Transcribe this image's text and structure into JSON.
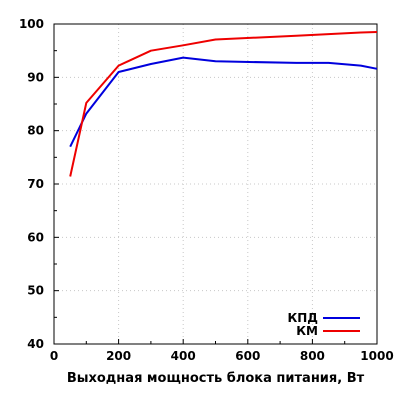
{
  "chart_data": {
    "type": "line",
    "xlabel": "Выходная мощность блока питания, Вт",
    "ylabel": "",
    "xlim": [
      0,
      1000
    ],
    "ylim": [
      40,
      100
    ],
    "xticks": [
      0,
      200,
      400,
      600,
      800,
      1000
    ],
    "yticks": [
      40,
      50,
      60,
      70,
      80,
      90,
      100
    ],
    "grid": true,
    "legend_position": "bottom-right",
    "series": [
      {
        "name": "КПД",
        "color": "#0000dd",
        "x": [
          50,
          100,
          200,
          300,
          400,
          500,
          750,
          850,
          950,
          1000
        ],
        "y": [
          77.0,
          83.2,
          91.0,
          92.5,
          93.7,
          93.0,
          92.7,
          92.7,
          92.2,
          91.6
        ]
      },
      {
        "name": "КМ",
        "color": "#ee0000",
        "x": [
          50,
          100,
          200,
          300,
          400,
          500,
          750,
          850,
          950,
          1000
        ],
        "y": [
          71.4,
          85.2,
          92.2,
          95.0,
          96.0,
          97.1,
          97.8,
          98.1,
          98.4,
          98.5
        ]
      }
    ]
  }
}
